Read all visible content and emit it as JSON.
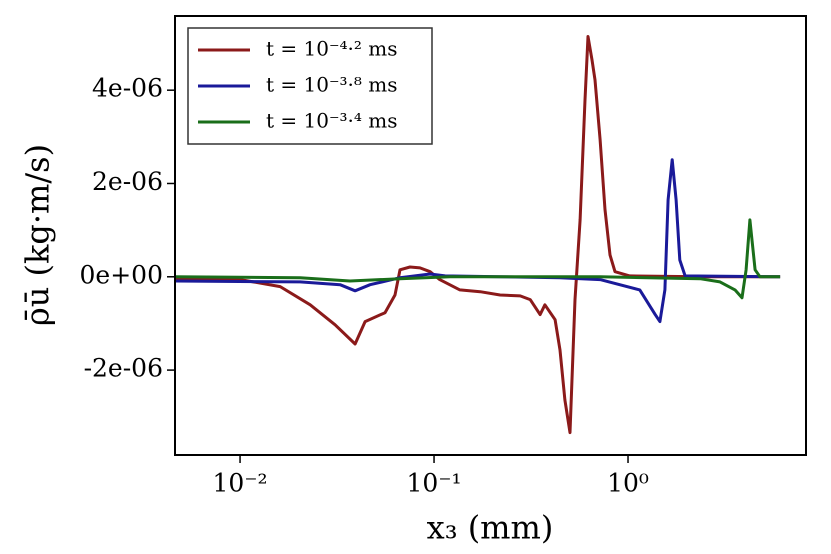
{
  "chart_data": {
    "type": "line",
    "xlabel": "x₃ (mm)",
    "ylabel": "ρ̄ū (kg·m/s)",
    "xscale": "log",
    "xlim": [
      0.00462,
      8.27
    ],
    "ylim": [
      -3.82e-06,
      5.59e-06
    ],
    "xticks": [
      {
        "value": 0.01,
        "label": "10⁻²"
      },
      {
        "value": 0.1,
        "label": "10⁻¹"
      },
      {
        "value": 1,
        "label": "10⁰"
      }
    ],
    "yticks": [
      {
        "value": -2e-06,
        "label": "-2e-06"
      },
      {
        "value": 0,
        "label": "0e+00"
      },
      {
        "value": 2e-06,
        "label": "2e-06"
      },
      {
        "value": 4e-06,
        "label": "4e-06"
      }
    ],
    "grid": false,
    "legend": "upper left",
    "series": [
      {
        "name": "t = 10⁻⁴·² ms",
        "color": "#8b1a1a",
        "x": [
          0.00462,
          0.01,
          0.0161,
          0.023,
          0.0309,
          0.0392,
          0.0441,
          0.0559,
          0.0629,
          0.0668,
          0.0752,
          0.0847,
          0.0954,
          0.107,
          0.136,
          0.173,
          0.219,
          0.278,
          0.313,
          0.352,
          0.373,
          0.421,
          0.446,
          0.473,
          0.502,
          0.533,
          0.566,
          0.6,
          0.622,
          0.652,
          0.676,
          0.718,
          0.761,
          0.807,
          0.857,
          1.02,
          2.35,
          6.08
        ],
        "values": [
          -4e-08,
          -6e-08,
          -2.1e-07,
          -6e-07,
          -1.03e-06,
          -1.44e-06,
          -9.6e-07,
          -7.7e-07,
          -3.9e-07,
          1.5e-07,
          2.1e-07,
          1.9e-07,
          1.1e-07,
          -6e-08,
          -2.8e-07,
          -3.2e-07,
          -3.9e-07,
          -4.1e-07,
          -4.9e-07,
          -8.1e-07,
          -6e-07,
          -9.2e-07,
          -1.57e-06,
          -2.64e-06,
          -3.34e-06,
          -4.9e-07,
          1.22e-06,
          3.79e-06,
          5.15e-06,
          4.65e-06,
          4.22e-06,
          2.94e-06,
          1.44e-06,
          4.7e-07,
          1.1e-07,
          2e-08,
          0,
          0
        ]
      },
      {
        "name": "t = 10⁻³·⁸ ms",
        "color": "#1a1a99",
        "x": [
          0.00462,
          0.0204,
          0.0328,
          0.0392,
          0.0468,
          0.0668,
          0.0954,
          0.114,
          0.219,
          0.446,
          0.718,
          1.15,
          1.38,
          1.46,
          1.55,
          1.61,
          1.69,
          1.77,
          1.85,
          1.97,
          6.08
        ],
        "values": [
          -9e-08,
          -1.1e-07,
          -1.7e-07,
          -3e-07,
          -1.7e-07,
          -2e-08,
          6e-08,
          2e-08,
          0,
          -2e-08,
          -6e-08,
          -2.8e-07,
          -8.1e-07,
          -9.6e-07,
          -2.8e-07,
          1.65e-06,
          2.51e-06,
          1.65e-06,
          3.6e-07,
          2e-08,
          0
        ]
      },
      {
        "name": "t = 10⁻³·⁴ ms",
        "color": "#1a6e1a",
        "x": [
          0.00462,
          0.0204,
          0.0369,
          0.0668,
          0.121,
          0.718,
          2.35,
          2.98,
          3.56,
          3.87,
          4.06,
          4.25,
          4.52,
          4.79,
          6.08
        ],
        "values": [
          0,
          -2e-08,
          -9e-08,
          -4e-08,
          0,
          0,
          -4e-08,
          -1.1e-07,
          -2.8e-07,
          -4.5e-07,
          1.5e-07,
          1.22e-06,
          1.5e-07,
          0,
          0
        ]
      }
    ]
  }
}
